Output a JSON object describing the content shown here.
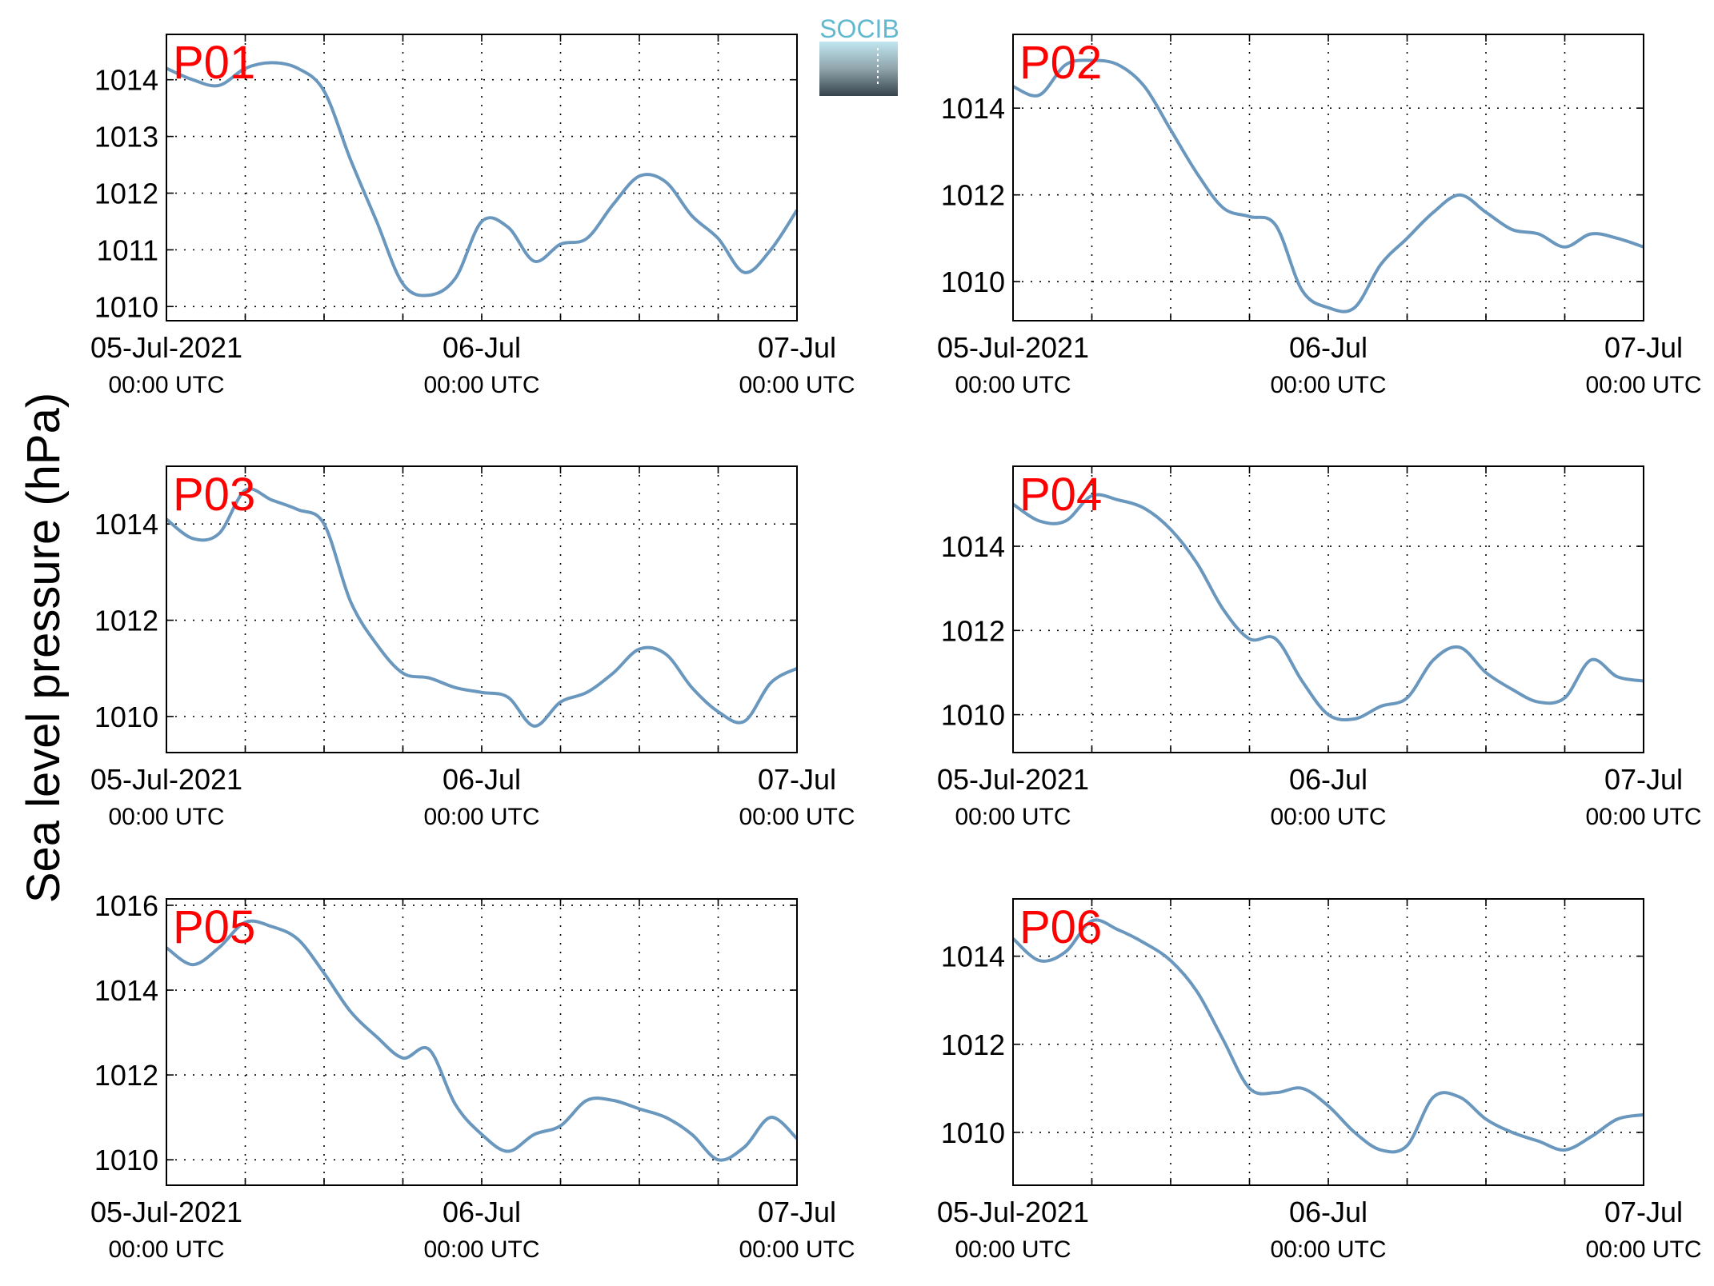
{
  "figure": {
    "ylabel": "Sea level pressure (hPa)",
    "logo_text": "SOCIB",
    "line_color": "#6a97bd",
    "label_color": "#ff0000",
    "logo_color": "#61b9cf"
  },
  "chart_data": [
    {
      "type": "line",
      "panel_label": "P01",
      "xlim": [
        "2021-07-05T00:00",
        "2021-07-07T00:00"
      ],
      "xticks": [
        {
          "value": "2021-07-05T00:00",
          "line1": "05-Jul-2021",
          "line2": "00:00 UTC"
        },
        {
          "value": "2021-07-06T00:00",
          "line1": "06-Jul",
          "line2": "00:00 UTC"
        },
        {
          "value": "2021-07-07T00:00",
          "line1": "07-Jul",
          "line2": "00:00 UTC"
        }
      ],
      "ylim": [
        1009.75,
        1014.8
      ],
      "yticks": [
        1010,
        1011,
        1012,
        1013,
        1014
      ],
      "grid": true,
      "hours": [
        0,
        2,
        4,
        6,
        8,
        10,
        12,
        14,
        16,
        18,
        20,
        22,
        24,
        26,
        28,
        30,
        32,
        34,
        36,
        38,
        40,
        42,
        44,
        46,
        48
      ],
      "values": [
        1014.2,
        1014.0,
        1013.9,
        1014.2,
        1014.3,
        1014.2,
        1013.8,
        1012.6,
        1011.5,
        1010.4,
        1010.2,
        1010.5,
        1011.5,
        1011.4,
        1010.8,
        1011.1,
        1011.2,
        1011.8,
        1012.3,
        1012.2,
        1011.6,
        1011.2,
        1010.6,
        1011.0,
        1011.7
      ]
    },
    {
      "type": "line",
      "panel_label": "P02",
      "xlim": [
        "2021-07-05T00:00",
        "2021-07-07T00:00"
      ],
      "xticks": [
        {
          "value": "2021-07-05T00:00",
          "line1": "05-Jul-2021",
          "line2": "00:00 UTC"
        },
        {
          "value": "2021-07-06T00:00",
          "line1": "06-Jul",
          "line2": "00:00 UTC"
        },
        {
          "value": "2021-07-07T00:00",
          "line1": "07-Jul",
          "line2": "00:00 UTC"
        }
      ],
      "ylim": [
        1009.1,
        1015.7
      ],
      "yticks": [
        1010,
        1012,
        1014
      ],
      "grid": true,
      "hours": [
        0,
        2,
        4,
        6,
        8,
        10,
        12,
        14,
        16,
        18,
        20,
        22,
        24,
        26,
        28,
        30,
        32,
        34,
        36,
        38,
        40,
        42,
        44,
        46,
        48
      ],
      "values": [
        1014.5,
        1014.3,
        1015.0,
        1015.1,
        1015.0,
        1014.5,
        1013.5,
        1012.5,
        1011.7,
        1011.5,
        1011.3,
        1009.8,
        1009.4,
        1009.4,
        1010.4,
        1011.0,
        1011.6,
        1012.0,
        1011.6,
        1011.2,
        1011.1,
        1010.8,
        1011.1,
        1011.0,
        1010.8
      ]
    },
    {
      "type": "line",
      "panel_label": "P03",
      "xlim": [
        "2021-07-05T00:00",
        "2021-07-07T00:00"
      ],
      "xticks": [
        {
          "value": "2021-07-05T00:00",
          "line1": "05-Jul-2021",
          "line2": "00:00 UTC"
        },
        {
          "value": "2021-07-06T00:00",
          "line1": "06-Jul",
          "line2": "00:00 UTC"
        },
        {
          "value": "2021-07-07T00:00",
          "line1": "07-Jul",
          "line2": "00:00 UTC"
        }
      ],
      "ylim": [
        1009.25,
        1015.2
      ],
      "yticks": [
        1010,
        1012,
        1014
      ],
      "grid": true,
      "hours": [
        0,
        2,
        4,
        6,
        8,
        10,
        12,
        14,
        16,
        18,
        20,
        22,
        24,
        26,
        28,
        30,
        32,
        34,
        36,
        38,
        40,
        42,
        44,
        46,
        48
      ],
      "values": [
        1014.1,
        1013.7,
        1013.8,
        1014.7,
        1014.5,
        1014.3,
        1014.0,
        1012.4,
        1011.5,
        1010.9,
        1010.8,
        1010.6,
        1010.5,
        1010.4,
        1009.8,
        1010.3,
        1010.5,
        1010.9,
        1011.4,
        1011.3,
        1010.6,
        1010.1,
        1009.9,
        1010.7,
        1011.0
      ]
    },
    {
      "type": "line",
      "panel_label": "P04",
      "xlim": [
        "2021-07-05T00:00",
        "2021-07-07T00:00"
      ],
      "xticks": [
        {
          "value": "2021-07-05T00:00",
          "line1": "05-Jul-2021",
          "line2": "00:00 UTC"
        },
        {
          "value": "2021-07-06T00:00",
          "line1": "06-Jul",
          "line2": "00:00 UTC"
        },
        {
          "value": "2021-07-07T00:00",
          "line1": "07-Jul",
          "line2": "00:00 UTC"
        }
      ],
      "ylim": [
        1009.1,
        1015.9
      ],
      "yticks": [
        1010,
        1012,
        1014
      ],
      "grid": true,
      "hours": [
        0,
        2,
        4,
        6,
        8,
        10,
        12,
        14,
        16,
        18,
        20,
        22,
        24,
        26,
        28,
        30,
        32,
        34,
        36,
        38,
        40,
        42,
        44,
        46,
        48
      ],
      "values": [
        1015.0,
        1014.6,
        1014.6,
        1015.2,
        1015.1,
        1014.9,
        1014.4,
        1013.6,
        1012.5,
        1011.8,
        1011.8,
        1010.8,
        1010.0,
        1009.9,
        1010.2,
        1010.4,
        1011.3,
        1011.6,
        1011.0,
        1010.6,
        1010.3,
        1010.4,
        1011.3,
        1010.9,
        1010.8
      ]
    },
    {
      "type": "line",
      "panel_label": "P05",
      "xlim": [
        "2021-07-05T00:00",
        "2021-07-07T00:00"
      ],
      "xticks": [
        {
          "value": "2021-07-05T00:00",
          "line1": "05-Jul-2021",
          "line2": "00:00 UTC"
        },
        {
          "value": "2021-07-06T00:00",
          "line1": "06-Jul",
          "line2": "00:00 UTC"
        },
        {
          "value": "2021-07-07T00:00",
          "line1": "07-Jul",
          "line2": "00:00 UTC"
        }
      ],
      "ylim": [
        1009.4,
        1016.15
      ],
      "yticks": [
        1010,
        1012,
        1014,
        1016
      ],
      "grid": true,
      "hours": [
        0,
        2,
        4,
        6,
        8,
        10,
        12,
        14,
        16,
        18,
        20,
        22,
        24,
        26,
        28,
        30,
        32,
        34,
        36,
        38,
        40,
        42,
        44,
        46,
        48
      ],
      "values": [
        1015.0,
        1014.6,
        1015.0,
        1015.6,
        1015.5,
        1015.2,
        1014.4,
        1013.5,
        1012.9,
        1012.4,
        1012.6,
        1011.3,
        1010.6,
        1010.2,
        1010.6,
        1010.8,
        1011.4,
        1011.4,
        1011.2,
        1011.0,
        1010.6,
        1010.0,
        1010.3,
        1011.0,
        1010.5
      ]
    },
    {
      "type": "line",
      "panel_label": "P06",
      "xlim": [
        "2021-07-05T00:00",
        "2021-07-07T00:00"
      ],
      "xticks": [
        {
          "value": "2021-07-05T00:00",
          "line1": "05-Jul-2021",
          "line2": "00:00 UTC"
        },
        {
          "value": "2021-07-06T00:00",
          "line1": "06-Jul",
          "line2": "00:00 UTC"
        },
        {
          "value": "2021-07-07T00:00",
          "line1": "07-Jul",
          "line2": "00:00 UTC"
        }
      ],
      "ylim": [
        1008.8,
        1015.3
      ],
      "yticks": [
        1010,
        1012,
        1014
      ],
      "grid": true,
      "hours": [
        0,
        2,
        4,
        6,
        8,
        10,
        12,
        14,
        16,
        18,
        20,
        22,
        24,
        26,
        28,
        30,
        32,
        34,
        36,
        38,
        40,
        42,
        44,
        46,
        48
      ],
      "values": [
        1014.4,
        1013.9,
        1014.1,
        1014.8,
        1014.6,
        1014.3,
        1013.9,
        1013.2,
        1012.1,
        1011.0,
        1010.9,
        1011.0,
        1010.6,
        1010.0,
        1009.6,
        1009.7,
        1010.8,
        1010.8,
        1010.3,
        1010.0,
        1009.8,
        1009.6,
        1009.9,
        1010.3,
        1010.4
      ]
    }
  ]
}
